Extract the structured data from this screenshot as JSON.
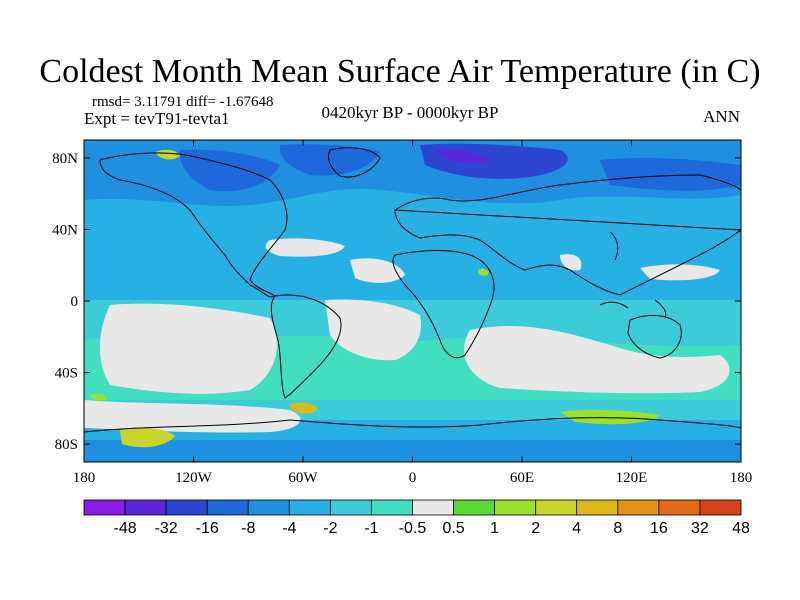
{
  "title": "Coldest Month Mean Surface Air Temperature (in C)",
  "stats": "rmsd= 3.11791 diff= -1.67648",
  "experiment": "Expt = tevT91-tevta1",
  "period": "0420kyr BP - 0000kyr BP",
  "season": "ANN",
  "map": {
    "longitude_range": [
      -180,
      180
    ],
    "latitude_range": [
      -90,
      90
    ],
    "lat_labels": [
      "80N",
      "40N",
      "0",
      "40S",
      "80S"
    ],
    "lat_values": [
      80,
      40,
      0,
      -40,
      -80
    ],
    "lon_labels": [
      "180",
      "120W",
      "60W",
      "0",
      "60E",
      "120E",
      "180"
    ],
    "lon_values": [
      -180,
      -120,
      -60,
      0,
      60,
      120,
      180
    ]
  },
  "colorbar": {
    "colors": [
      "#8a1ce8",
      "#5a26d9",
      "#2e45d2",
      "#1d68da",
      "#1f8fe0",
      "#27b0e4",
      "#3ccbd8",
      "#41dfc0",
      "#e8e8e8",
      "#5cd833",
      "#9ce02e",
      "#c8d62a",
      "#dcb81a",
      "#e09318",
      "#e06a16",
      "#d8421a"
    ],
    "labels": [
      "-48",
      "-32",
      "-16",
      "-8",
      "-4",
      "-2",
      "-1",
      "-0.5",
      "0.5",
      "1",
      "2",
      "4",
      "8",
      "16",
      "32",
      "48"
    ]
  }
}
